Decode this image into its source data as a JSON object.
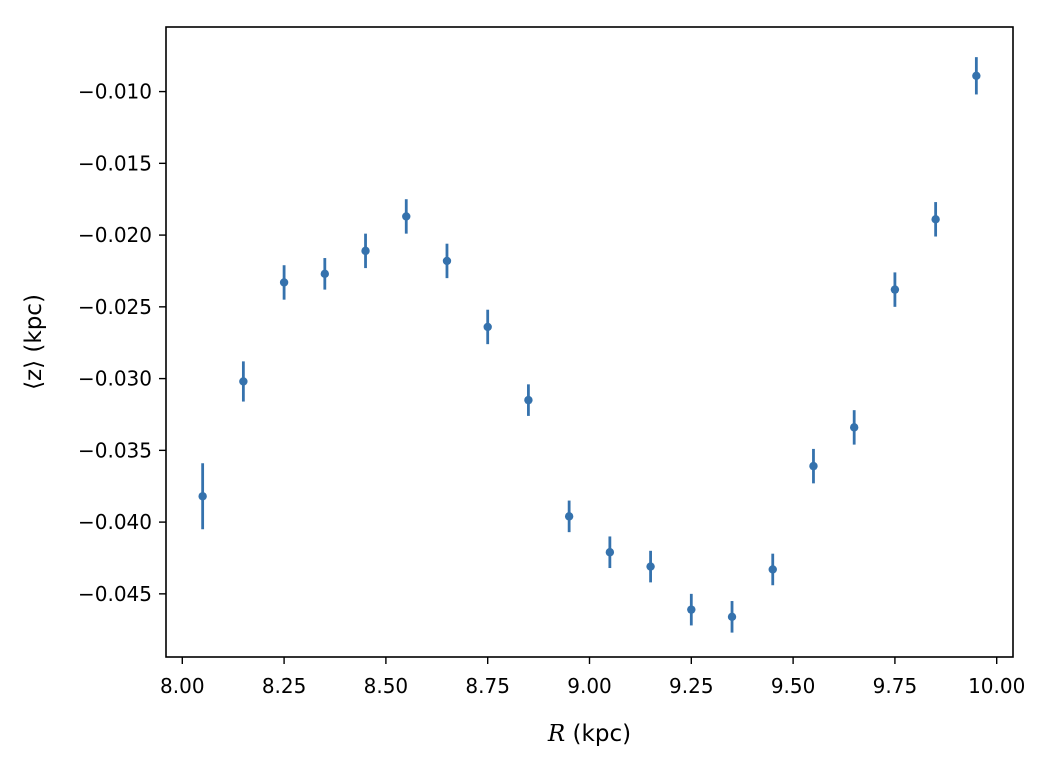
{
  "chart_data": {
    "type": "scatter",
    "title": "",
    "xlabel_italic": "R",
    "xlabel_rest": " (kpc)",
    "ylabel": "⟨z⟩ (kpc)",
    "xlim": [
      7.96,
      10.04
    ],
    "ylim": [
      -0.0494,
      -0.0055
    ],
    "xticks": [
      8.0,
      8.25,
      8.5,
      8.75,
      9.0,
      9.25,
      9.5,
      9.75,
      10.0
    ],
    "xtick_labels": [
      "8.00",
      "8.25",
      "8.50",
      "8.75",
      "9.00",
      "9.25",
      "9.50",
      "9.75",
      "10.00"
    ],
    "yticks": [
      -0.045,
      -0.04,
      -0.035,
      -0.03,
      -0.025,
      -0.02,
      -0.015,
      -0.01
    ],
    "ytick_labels": [
      "−0.045",
      "−0.040",
      "−0.035",
      "−0.030",
      "−0.025",
      "−0.020",
      "−0.015",
      "−0.010"
    ],
    "grid": false,
    "marker_color": "#3572ad",
    "series": [
      {
        "x": [
          8.05,
          8.15,
          8.25,
          8.35,
          8.45,
          8.55,
          8.65,
          8.75,
          8.85,
          8.95,
          9.05,
          9.15,
          9.25,
          9.35,
          9.45,
          9.55,
          9.65,
          9.75,
          9.85,
          9.95
        ],
        "y": [
          -0.0382,
          -0.0302,
          -0.0233,
          -0.0227,
          -0.0211,
          -0.0187,
          -0.0218,
          -0.0264,
          -0.0315,
          -0.0396,
          -0.0421,
          -0.0431,
          -0.0461,
          -0.0466,
          -0.0433,
          -0.0361,
          -0.0334,
          -0.0238,
          -0.0189,
          -0.0089
        ],
        "yerr": [
          0.0023,
          0.0014,
          0.0012,
          0.0011,
          0.0012,
          0.0012,
          0.0012,
          0.0012,
          0.0011,
          0.0011,
          0.0011,
          0.0011,
          0.0011,
          0.0011,
          0.0011,
          0.0012,
          0.0012,
          0.0012,
          0.0012,
          0.0013
        ]
      }
    ]
  }
}
